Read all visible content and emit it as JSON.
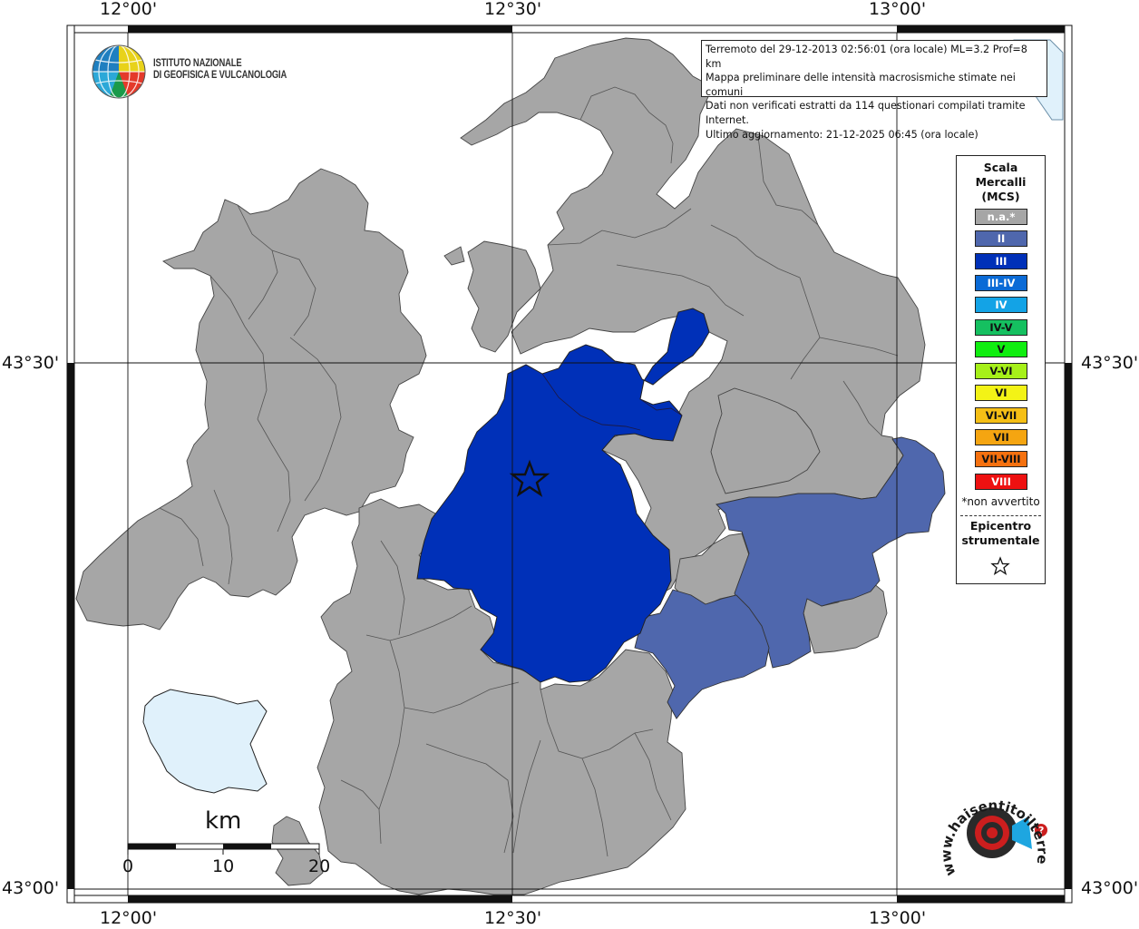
{
  "map": {
    "coords": {
      "top_12_00": "12°00'",
      "top_12_30": "12°30'",
      "top_13_00": "13°00'",
      "bottom_12_00": "12°00'",
      "bottom_12_30": "12°30'",
      "bottom_13_00": "13°00'",
      "left_43_30": "43°30'",
      "left_43_00": "43°00'",
      "right_43_30": "43°30'",
      "right_43_00": "43°00'"
    },
    "colors": {
      "na": "#a6a6a6",
      "ii": "#4f67ad",
      "iii": "#0030b8",
      "water": "#e0f1fb",
      "land": "#ffffff"
    }
  },
  "header": {
    "org_line1": "ISTITUTO NAZIONALE",
    "org_line2": "DI GEOFISICA E VULCANOLOGIA"
  },
  "info": {
    "line1": "Terremoto del 29-12-2013 02:56:01 (ora locale) ML=3.2 Prof=8 km",
    "line2": "Mappa preliminare delle intensità macrosismiche stimate nei comuni",
    "line3": "Dati non verificati estratti da 114 questionari compilati tramite Internet.",
    "line4": "Ultimo aggiornamento: 21-12-2025 06:45 (ora locale)"
  },
  "legend": {
    "title1": "Scala",
    "title2": "Mercalli",
    "title3": "(MCS)",
    "items": [
      {
        "label": "n.a.*",
        "color": "#a6a6a6",
        "text_color": "#ffffff"
      },
      {
        "label": "II",
        "color": "#4f67ad",
        "text_color": "#ffffff"
      },
      {
        "label": "III",
        "color": "#0030b8",
        "text_color": "#ffffff"
      },
      {
        "label": "III-IV",
        "color": "#0a6ad6",
        "text_color": "#ffffff"
      },
      {
        "label": "IV",
        "color": "#13a3e6",
        "text_color": "#ffffff"
      },
      {
        "label": "IV-V",
        "color": "#15c060",
        "text_color": "#111111"
      },
      {
        "label": "V",
        "color": "#11ee11",
        "text_color": "#111111"
      },
      {
        "label": "V-VI",
        "color": "#a6f019",
        "text_color": "#111111"
      },
      {
        "label": "VI",
        "color": "#f3f316",
        "text_color": "#111111"
      },
      {
        "label": "VI-VII",
        "color": "#f5bf16",
        "text_color": "#111111"
      },
      {
        "label": "VII",
        "color": "#f5a511",
        "text_color": "#111111"
      },
      {
        "label": "VII-VIII",
        "color": "#f5710f",
        "text_color": "#111111"
      },
      {
        "label": "VIII",
        "color": "#ee1111",
        "text_color": "#ffffff"
      }
    ],
    "note": "*non avvertito",
    "epicenter1": "Epicentro",
    "epicenter2": "strumentale"
  },
  "scale": {
    "title": "km",
    "labels": [
      "0",
      "10",
      "20"
    ]
  },
  "brand": {
    "text": "www.haisentitoilterremoto.it"
  }
}
